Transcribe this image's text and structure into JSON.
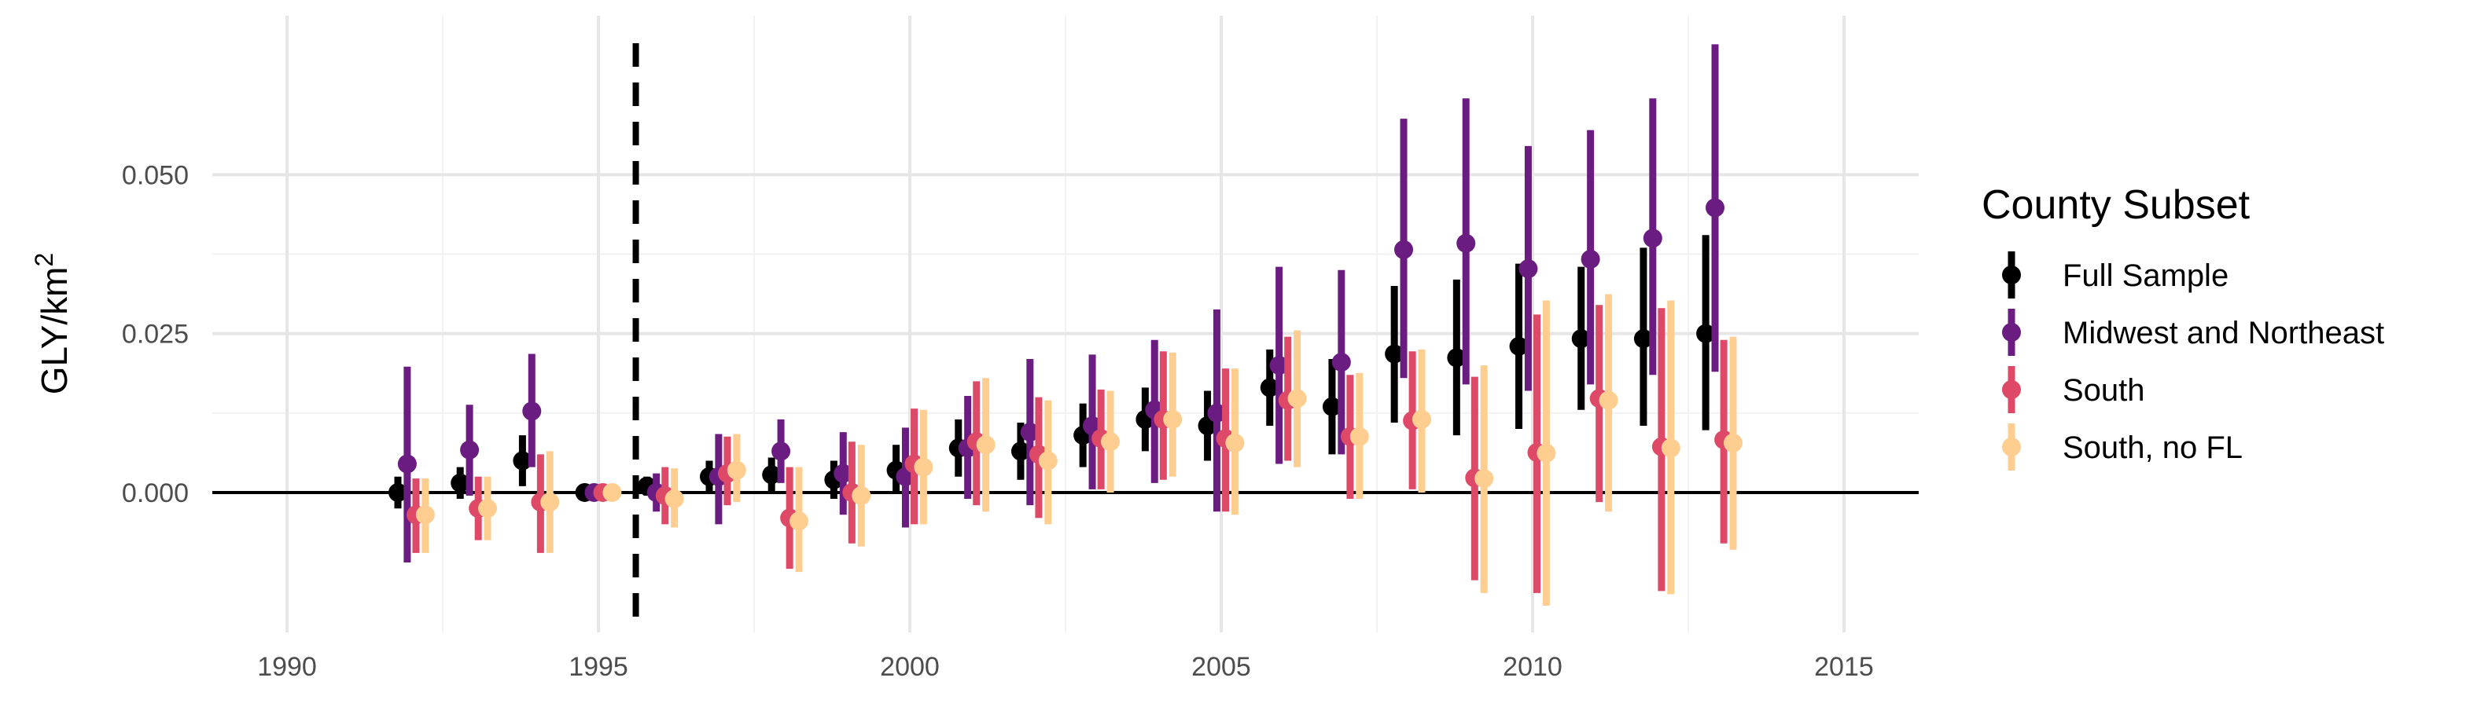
{
  "chart_data": {
    "type": "scatter",
    "subtype": "point-range",
    "title": "",
    "xlabel": "",
    "ylabel_base": "GLY/km",
    "ylabel_superscript": "2",
    "xlim": [
      1988.8,
      1992.2
    ],
    "ylim": [
      -0.022,
      0.075
    ],
    "x_ticks": [
      1990,
      1995,
      2000,
      2005,
      2010,
      2015
    ],
    "x_tick_labels": [
      "1990",
      "1995",
      "2000",
      "2005",
      "2010",
      "2015"
    ],
    "y_ticks": [
      0.0,
      0.025,
      0.05
    ],
    "y_tick_labels": [
      "0.000",
      "0.025",
      "0.050"
    ],
    "grid": true,
    "reference_hline": 0.0,
    "reference_vline": 1995.6,
    "legend": {
      "title": "County Subset",
      "placement": "right"
    },
    "series": [
      {
        "name": "Full Sample",
        "color": "#000000",
        "x_offset": -0.22,
        "x": [
          1992,
          1993,
          1994,
          1995,
          1996,
          1997,
          1998,
          1999,
          2000,
          2001,
          2002,
          2003,
          2004,
          2005,
          2006,
          2007,
          2008,
          2009,
          2010,
          2011,
          2012,
          2013
        ],
        "y": [
          0.0,
          0.0015,
          0.005,
          0.0,
          0.001,
          0.0025,
          0.0028,
          0.002,
          0.0035,
          0.007,
          0.0065,
          0.009,
          0.0115,
          0.0105,
          0.0165,
          0.0135,
          0.0218,
          0.0212,
          0.023,
          0.0242,
          0.0242,
          0.025
        ],
        "lower": [
          -0.0025,
          -0.001,
          0.001,
          0.0,
          -0.0005,
          0.0,
          0.0,
          -0.001,
          0.0,
          0.0025,
          0.002,
          0.004,
          0.0065,
          0.005,
          0.0105,
          0.006,
          0.011,
          0.009,
          0.01,
          0.013,
          0.0105,
          0.0098
        ],
        "upper": [
          0.0025,
          0.004,
          0.009,
          0.0,
          0.0025,
          0.005,
          0.0055,
          0.005,
          0.0075,
          0.0115,
          0.011,
          0.014,
          0.0165,
          0.016,
          0.0225,
          0.021,
          0.0325,
          0.0335,
          0.036,
          0.0355,
          0.0385,
          0.0405
        ]
      },
      {
        "name": "Midwest and Northeast",
        "color": "#6A1C81",
        "x_offset": -0.07,
        "x": [
          1992,
          1993,
          1994,
          1995,
          1996,
          1997,
          1998,
          1999,
          2000,
          2001,
          2002,
          2003,
          2004,
          2005,
          2006,
          2007,
          2008,
          2009,
          2010,
          2011,
          2012,
          2013
        ],
        "y": [
          0.0045,
          0.0067,
          0.0128,
          0.0,
          0.0,
          0.0025,
          0.0065,
          0.003,
          0.0025,
          0.007,
          0.0095,
          0.0105,
          0.013,
          0.0125,
          0.02,
          0.0205,
          0.0382,
          0.0392,
          0.0352,
          0.0367,
          0.04,
          0.0448
        ],
        "lower": [
          -0.011,
          -0.0005,
          0.004,
          0.0,
          -0.003,
          -0.005,
          0.0015,
          -0.0035,
          -0.0055,
          -0.001,
          -0.002,
          0.0005,
          0.0015,
          -0.003,
          0.0045,
          0.006,
          0.018,
          0.017,
          0.016,
          0.017,
          0.0185,
          0.019
        ],
        "upper": [
          0.0198,
          0.0138,
          0.0218,
          0.0,
          0.003,
          0.0092,
          0.0115,
          0.0095,
          0.0102,
          0.0152,
          0.021,
          0.0217,
          0.024,
          0.0288,
          0.0355,
          0.035,
          0.0588,
          0.062,
          0.0545,
          0.057,
          0.062,
          0.0705
        ]
      },
      {
        "name": "South",
        "color": "#DE4968",
        "x_offset": 0.07,
        "x": [
          1992,
          1993,
          1994,
          1995,
          1996,
          1997,
          1998,
          1999,
          2000,
          2001,
          2002,
          2003,
          2004,
          2005,
          2006,
          2007,
          2008,
          2009,
          2010,
          2011,
          2012,
          2013
        ],
        "y": [
          -0.0035,
          -0.0025,
          -0.0015,
          0.0,
          -0.0005,
          0.003,
          -0.004,
          0.0,
          0.0045,
          0.008,
          0.006,
          0.0085,
          0.0115,
          0.0085,
          0.0145,
          0.0088,
          0.0113,
          0.0023,
          0.0063,
          0.0148,
          0.0072,
          0.0083
        ],
        "lower": [
          -0.0095,
          -0.0075,
          -0.0095,
          0.0,
          -0.005,
          -0.002,
          -0.012,
          -0.008,
          -0.005,
          -0.002,
          -0.004,
          0.0005,
          0.002,
          -0.003,
          0.005,
          -0.001,
          0.0005,
          -0.0138,
          -0.0158,
          -0.0015,
          -0.0155,
          -0.008
        ],
        "upper": [
          0.0022,
          0.0025,
          0.006,
          0.0,
          0.004,
          0.0088,
          0.004,
          0.008,
          0.0132,
          0.0175,
          0.015,
          0.0162,
          0.0222,
          0.0195,
          0.0245,
          0.0185,
          0.0222,
          0.0182,
          0.028,
          0.0295,
          0.029,
          0.024
        ]
      },
      {
        "name": "South, no FL",
        "color": "#FECE91",
        "x_offset": 0.22,
        "x": [
          1992,
          1993,
          1994,
          1995,
          1996,
          1997,
          1998,
          1999,
          2000,
          2001,
          2002,
          2003,
          2004,
          2005,
          2006,
          2007,
          2008,
          2009,
          2010,
          2011,
          2012,
          2013
        ],
        "y": [
          -0.0035,
          -0.0025,
          -0.0015,
          0.0,
          -0.001,
          0.0035,
          -0.0045,
          -0.0005,
          0.004,
          0.0075,
          0.005,
          0.008,
          0.0115,
          0.0078,
          0.0148,
          0.0088,
          0.0115,
          0.0022,
          0.0062,
          0.0145,
          0.007,
          0.0078
        ],
        "lower": [
          -0.0095,
          -0.0075,
          -0.0095,
          0.0,
          -0.0055,
          -0.0015,
          -0.0125,
          -0.0085,
          -0.005,
          -0.003,
          -0.005,
          0.0,
          0.0025,
          -0.0035,
          0.004,
          -0.001,
          0.0,
          -0.0158,
          -0.0178,
          -0.003,
          -0.016,
          -0.009
        ],
        "upper": [
          0.0022,
          0.0025,
          0.0065,
          0.0,
          0.0038,
          0.0092,
          0.004,
          0.0075,
          0.013,
          0.018,
          0.0145,
          0.016,
          0.022,
          0.0195,
          0.0255,
          0.0188,
          0.0225,
          0.02,
          0.0302,
          0.0312,
          0.0302,
          0.0245
        ]
      }
    ]
  }
}
